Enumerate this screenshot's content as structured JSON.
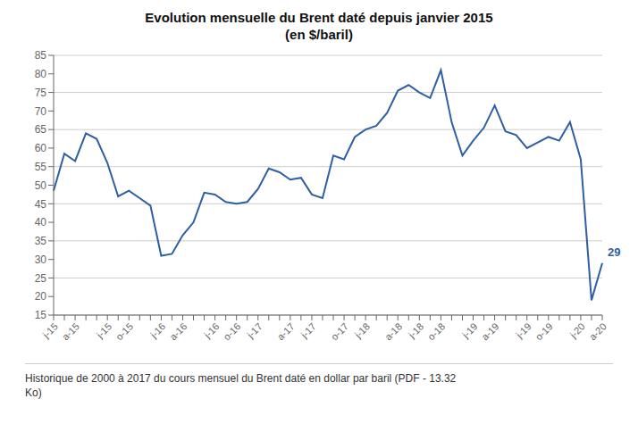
{
  "chart_data": {
    "type": "line",
    "title": "Evolution mensuelle du Brent daté depuis janvier 2015",
    "subtitle": "(en $/baril)",
    "footer": "Historique de 2000 à 2017 du cours mensuel du Brent daté en dollar par baril (PDF - 13.32\nKo)",
    "color": "#2e5fa3",
    "ylim": [
      15,
      85
    ],
    "yticks": [
      15,
      20,
      25,
      30,
      35,
      40,
      45,
      50,
      55,
      60,
      65,
      70,
      75,
      80,
      85
    ],
    "grid": true,
    "annotations": [
      {
        "text": "29",
        "color": "#2e5fa3"
      }
    ],
    "categories": [
      "j-15",
      null,
      "a-15",
      null,
      null,
      "j-15",
      null,
      "o-15",
      null,
      null,
      "j-16",
      null,
      "a-16",
      null,
      null,
      "j-16",
      null,
      "o-16",
      null,
      "j-17",
      null,
      null,
      "a-17",
      null,
      "j-17",
      null,
      null,
      "o-17",
      null,
      "j-18",
      null,
      null,
      "a-18",
      null,
      "j-18",
      null,
      "o-18",
      null,
      null,
      "j-19",
      null,
      "a-19",
      null,
      null,
      "j-19",
      null,
      "o-19",
      null,
      null,
      "j-20",
      null,
      "a-20"
    ],
    "values": [
      48.5,
      58.5,
      56.5,
      64.0,
      62.5,
      56.0,
      47.0,
      48.5,
      46.5,
      44.5,
      31.0,
      31.5,
      36.5,
      40.0,
      48.0,
      47.5,
      45.5,
      45.0,
      45.5,
      49.0,
      54.5,
      53.5,
      51.5,
      52.0,
      47.5,
      46.5,
      58.0,
      57.0,
      63.0,
      65.0,
      66.0,
      69.5,
      75.5,
      77.0,
      75.0,
      73.5,
      81.0,
      67.0,
      58.0,
      62.0,
      65.5,
      71.5,
      64.5,
      63.5,
      60.0,
      61.5,
      63.0,
      62.0,
      67.0,
      57.0,
      19.0,
      29.0
    ]
  }
}
